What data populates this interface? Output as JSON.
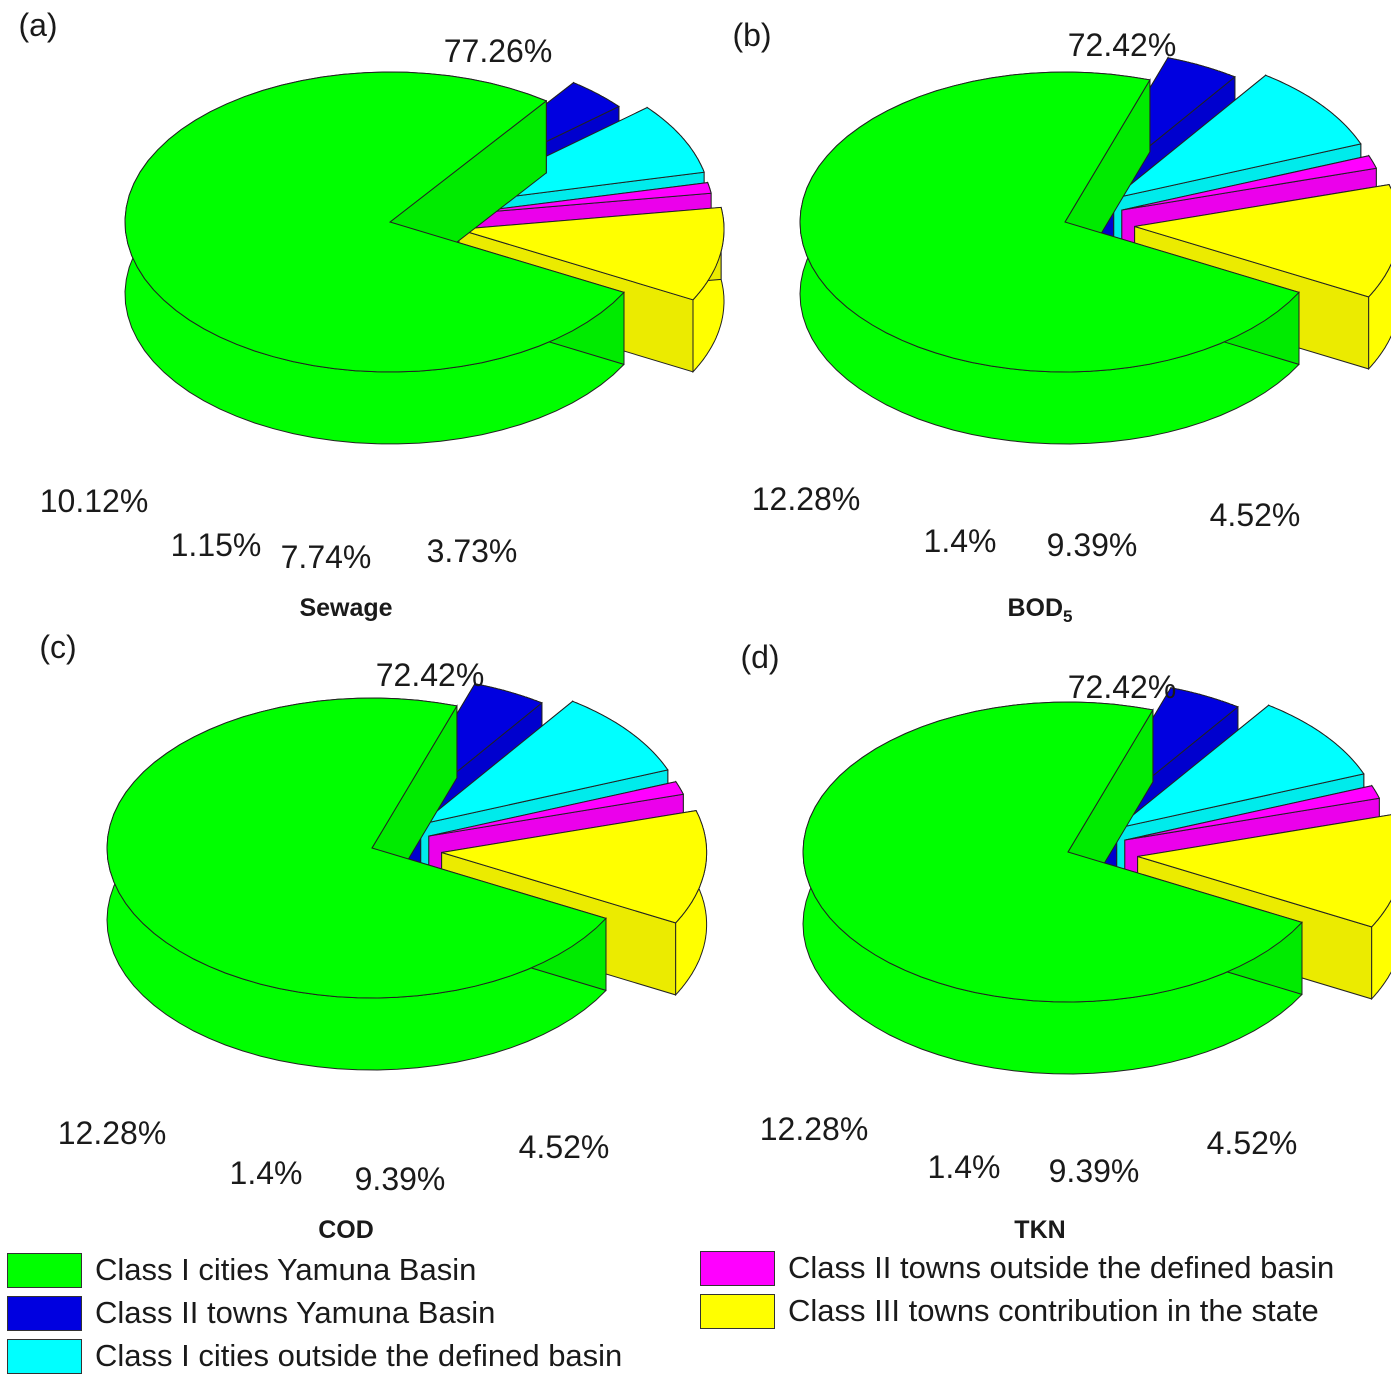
{
  "chart_data": [
    {
      "type": "pie",
      "panel": "(a)",
      "title": "Sewage",
      "slices": [
        {
          "key": "class1_yamuna",
          "value": 77.26,
          "label": "77.26%"
        },
        {
          "key": "class2_yamuna",
          "value": 3.73,
          "label": "3.73%"
        },
        {
          "key": "class1_outside",
          "value": 7.74,
          "label": "7.74%"
        },
        {
          "key": "class2_outside",
          "value": 1.15,
          "label": "1.15%"
        },
        {
          "key": "class3_state",
          "value": 10.12,
          "label": "10.12%"
        }
      ]
    },
    {
      "type": "pie",
      "panel": "(b)",
      "title": "BOD",
      "title_sub": "5",
      "slices": [
        {
          "key": "class1_yamuna",
          "value": 72.42,
          "label": "72.42%"
        },
        {
          "key": "class2_yamuna",
          "value": 4.52,
          "label": "4.52%"
        },
        {
          "key": "class1_outside",
          "value": 9.39,
          "label": "9.39%"
        },
        {
          "key": "class2_outside",
          "value": 1.4,
          "label": "1.4%"
        },
        {
          "key": "class3_state",
          "value": 12.28,
          "label": "12.28%"
        }
      ]
    },
    {
      "type": "pie",
      "panel": "(c)",
      "title": "COD",
      "slices": [
        {
          "key": "class1_yamuna",
          "value": 72.42,
          "label": "72.42%"
        },
        {
          "key": "class2_yamuna",
          "value": 4.52,
          "label": "4.52%"
        },
        {
          "key": "class1_outside",
          "value": 9.39,
          "label": "9.39%"
        },
        {
          "key": "class2_outside",
          "value": 1.4,
          "label": "1.4%"
        },
        {
          "key": "class3_state",
          "value": 12.28,
          "label": "12.28%"
        }
      ]
    },
    {
      "type": "pie",
      "panel": "(d)",
      "title": "TKN",
      "slices": [
        {
          "key": "class1_yamuna",
          "value": 72.42,
          "label": "72.42%"
        },
        {
          "key": "class2_yamuna",
          "value": 4.52,
          "label": "4.52%"
        },
        {
          "key": "class1_outside",
          "value": 9.39,
          "label": "9.39%"
        },
        {
          "key": "class2_outside",
          "value": 1.4,
          "label": "1.4%"
        },
        {
          "key": "class3_state",
          "value": 12.28,
          "label": "12.28%"
        }
      ]
    }
  ],
  "legend": {
    "class1_yamuna": {
      "label": "Class I cities Yamuna Basin",
      "color": "#00ff00"
    },
    "class2_yamuna": {
      "label": "Class II towns Yamuna Basin",
      "color": "#0000e0"
    },
    "class1_outside": {
      "label": "Class I cities outside the defined basin",
      "color": "#00ffff"
    },
    "class2_outside": {
      "label": "Class II towns outside the defined basin",
      "color": "#ff00ff"
    },
    "class3_state": {
      "label": "Class III towns contribution in the state",
      "color": "#ffff00"
    }
  }
}
